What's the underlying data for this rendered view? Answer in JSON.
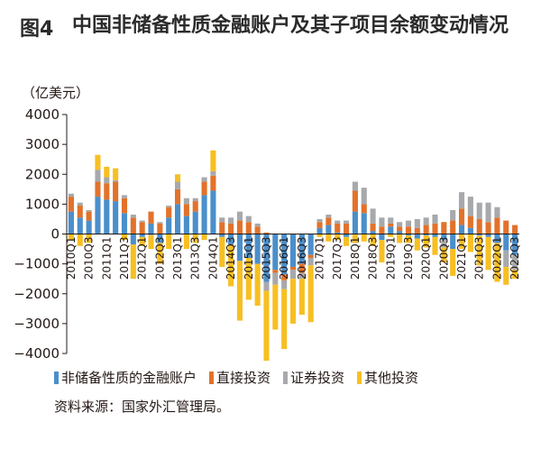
{
  "figure": {
    "label": "图4",
    "title": "中国非储备性质金融账户及其子项目余额变动情况",
    "source": "资料来源：国家外汇管理局。"
  },
  "colors": {
    "financial_account": "#4a8fcb",
    "direct_investment": "#e2722b",
    "securities_investment": "#a7a9ac",
    "other_investment": "#f7bf22"
  },
  "chart_data": {
    "type": "bar",
    "stacked": true,
    "unit_label": "（亿美元）",
    "ylim": [
      -4000,
      4000
    ],
    "yticks": [
      4000,
      3000,
      2000,
      1000,
      0,
      -1000,
      -2000,
      -3000,
      -4000
    ],
    "ytick_labels": [
      "4000",
      "3000",
      "2000",
      "1000",
      "0",
      "−1000",
      "−2000",
      "−3000",
      "−4000"
    ],
    "grid": false,
    "legend_position": "bottom",
    "x": [
      "2010Q1",
      "2010Q2",
      "2010Q3",
      "2010Q4",
      "2011Q1",
      "2011Q2",
      "2011Q3",
      "2011Q4",
      "2012Q1",
      "2012Q2",
      "2012Q3",
      "2012Q4",
      "2013Q1",
      "2013Q2",
      "2013Q3",
      "2013Q4",
      "2014Q1",
      "2014Q2",
      "2014Q3",
      "2014Q4",
      "2015Q1",
      "2015Q2",
      "2015Q3",
      "2015Q4",
      "2016Q1",
      "2016Q2",
      "2016Q3",
      "2016Q4",
      "2017Q1",
      "2017Q2",
      "2017Q3",
      "2017Q4",
      "2018Q1",
      "2018Q2",
      "2018Q3",
      "2018Q4",
      "2019Q1",
      "2019Q2",
      "2019Q3",
      "2019Q4",
      "2020Q1",
      "2020Q2",
      "2020Q3",
      "2020Q4",
      "2021Q1",
      "2021Q2",
      "2021Q3",
      "2021Q4",
      "2022Q1",
      "2022Q2",
      "2022Q3"
    ],
    "x_tick_labels": [
      "2010Q1",
      "2010Q3",
      "2011Q1",
      "2011Q3",
      "2012Q1",
      "2012Q3",
      "2013Q1",
      "2013Q3",
      "2014Q1",
      "2014Q3",
      "2015Q1",
      "2015Q3",
      "2016Q1",
      "2016Q3",
      "2017Q1",
      "2017Q3",
      "2018Q1",
      "2018Q3",
      "2019Q1",
      "2019Q3",
      "2020Q1",
      "2020Q3",
      "2021Q1",
      "2021Q3",
      "2022Q1",
      "2022Q3"
    ],
    "series": [
      {
        "name": "非储备性质的金融账户",
        "key": "financial_account",
        "values": [
          750,
          550,
          450,
          1250,
          1150,
          1100,
          700,
          -350,
          -100,
          350,
          -300,
          550,
          1000,
          600,
          750,
          1300,
          1450,
          -100,
          -350,
          -900,
          -800,
          -1000,
          -1600,
          -1200,
          -1350,
          -1100,
          -1000,
          -700,
          200,
          300,
          50,
          -100,
          750,
          700,
          100,
          -200,
          250,
          100,
          -50,
          -150,
          -50,
          -100,
          -200,
          -500,
          300,
          200,
          -50,
          -100,
          -300,
          -550,
          -700
        ]
      },
      {
        "name": "直接投资",
        "key": "direct_investment",
        "values": [
          500,
          400,
          300,
          500,
          550,
          650,
          500,
          550,
          400,
          400,
          350,
          350,
          500,
          400,
          350,
          450,
          500,
          400,
          350,
          450,
          400,
          250,
          50,
          -100,
          -200,
          -100,
          -300,
          -100,
          200,
          250,
          300,
          350,
          700,
          300,
          250,
          250,
          100,
          150,
          250,
          200,
          300,
          350,
          400,
          450,
          550,
          400,
          500,
          400,
          550,
          450,
          300
        ]
      },
      {
        "name": "证券投资",
        "key": "securities_investment",
        "values": [
          100,
          100,
          50,
          400,
          200,
          50,
          100,
          100,
          50,
          -50,
          50,
          50,
          250,
          200,
          100,
          150,
          150,
          150,
          200,
          300,
          200,
          100,
          -300,
          -400,
          -300,
          -300,
          -200,
          -250,
          100,
          100,
          100,
          100,
          300,
          550,
          500,
          300,
          200,
          150,
          200,
          300,
          250,
          300,
          -250,
          350,
          550,
          650,
          550,
          650,
          350,
          -550,
          -500
        ]
      },
      {
        "name": "其他投资",
        "key": "other_investment",
        "values": [
          -200,
          -400,
          -300,
          500,
          350,
          400,
          -200,
          -1150,
          -300,
          -450,
          -700,
          -500,
          250,
          -500,
          -300,
          -200,
          700,
          -1000,
          -1400,
          -2000,
          -1400,
          -1400,
          -2400,
          -1500,
          -2000,
          -1500,
          -1200,
          -1900,
          -100,
          -250,
          -200,
          -300,
          -300,
          -250,
          -400,
          -750,
          -100,
          -300,
          -250,
          -400,
          -400,
          -600,
          -500,
          -900,
          -500,
          -600,
          -1000,
          -1100,
          -1300,
          -600,
          -300
        ]
      }
    ]
  }
}
